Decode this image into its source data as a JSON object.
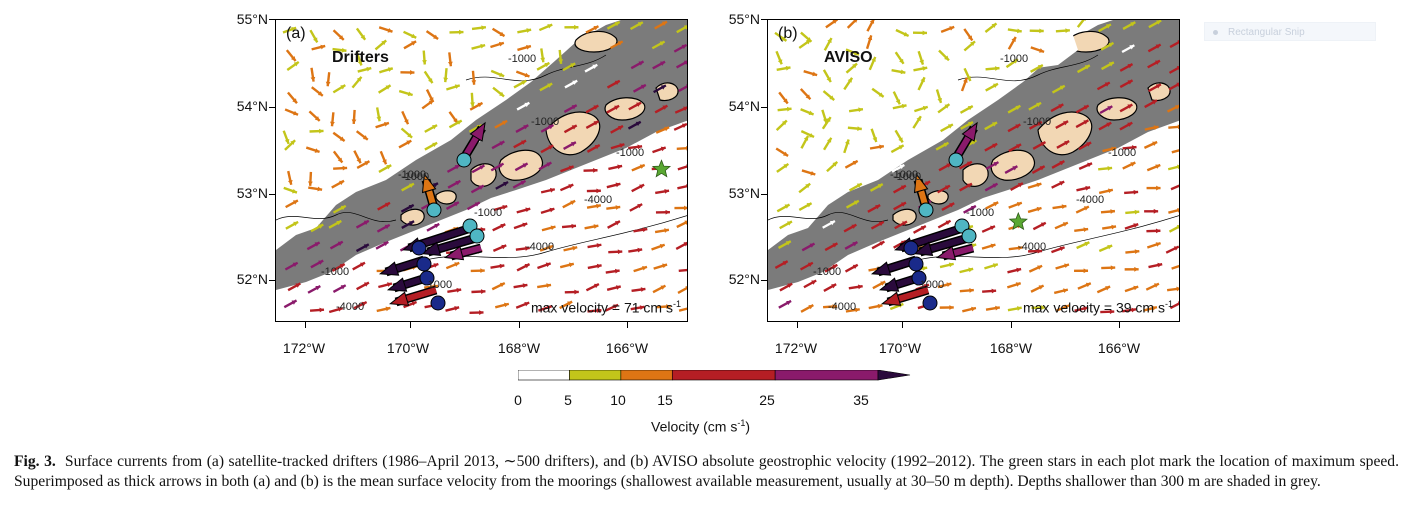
{
  "figure": {
    "panels": [
      {
        "letter": "(a)",
        "title": "Drifters",
        "max_velocity_label": "max velocity = 71 cm s",
        "max_velocity_exponent": "-1",
        "max_speed_location": {
          "lon": -165.4,
          "lat": 53.3
        },
        "contour_labels": [
          "-1000",
          "-1000",
          "-1000",
          "-1000",
          "-1000",
          "-1000",
          "-4000",
          "-4000",
          "-4000",
          "-1000",
          "-1000"
        ]
      },
      {
        "letter": "(b)",
        "title": "AVISO",
        "max_velocity_label": "max velocity = 39 cm s",
        "max_velocity_exponent": "-1",
        "max_speed_location": {
          "lon": -168.1,
          "lat": 52.7
        },
        "contour_labels": [
          "-1000",
          "-1000",
          "-1000",
          "-1000",
          "-1000",
          "-1000",
          "-4000",
          "-4000",
          "-4000",
          "-1000",
          "-1000"
        ]
      }
    ],
    "y_ticks": [
      "55°N",
      "54°N",
      "53°N",
      "52°N"
    ],
    "x_ticks": [
      "172°W",
      "170°W",
      "168°W",
      "166°W"
    ],
    "colorbar": {
      "title": "Velocity (cm s",
      "title_exponent": "-1",
      "title_close": ")",
      "tick_labels": [
        "0",
        "5",
        "10",
        "15",
        "25",
        "35"
      ],
      "bins": [
        {
          "from": 0,
          "to": 5,
          "color": "#ffffff"
        },
        {
          "from": 5,
          "to": 10,
          "color": "#c3c51a"
        },
        {
          "from": 10,
          "to": 15,
          "color": "#dd7514"
        },
        {
          "from": 15,
          "to": 25,
          "color": "#b51e24"
        },
        {
          "from": 25,
          "to": 35,
          "color": "#8a1a6b"
        },
        {
          "from": 35,
          "to": 40,
          "color": "#2a0a3c"
        }
      ]
    },
    "colors": {
      "shelf_grey": "#7b7b7b",
      "land": "#f2d7b4",
      "mooring_cyan": "#4fb6c3",
      "mooring_navy": "#1a2a8a",
      "star_green": "#5aa832"
    }
  },
  "overlay": {
    "snip_label": "Rectangular Snip"
  },
  "caption": {
    "label": "Fig. 3.",
    "text": "Surface currents from (a) satellite-tracked drifters (1986–April 2013, ∼500 drifters), and (b) AVISO absolute geostrophic velocity (1992–2012). The green stars in each plot mark the location of maximum speed. Superimposed as thick arrows in both (a) and (b) is the mean surface velocity from the moorings (shallowest available measurement, usually at 30–50 m depth). Depths shallower than 300 m are shaded in grey."
  }
}
